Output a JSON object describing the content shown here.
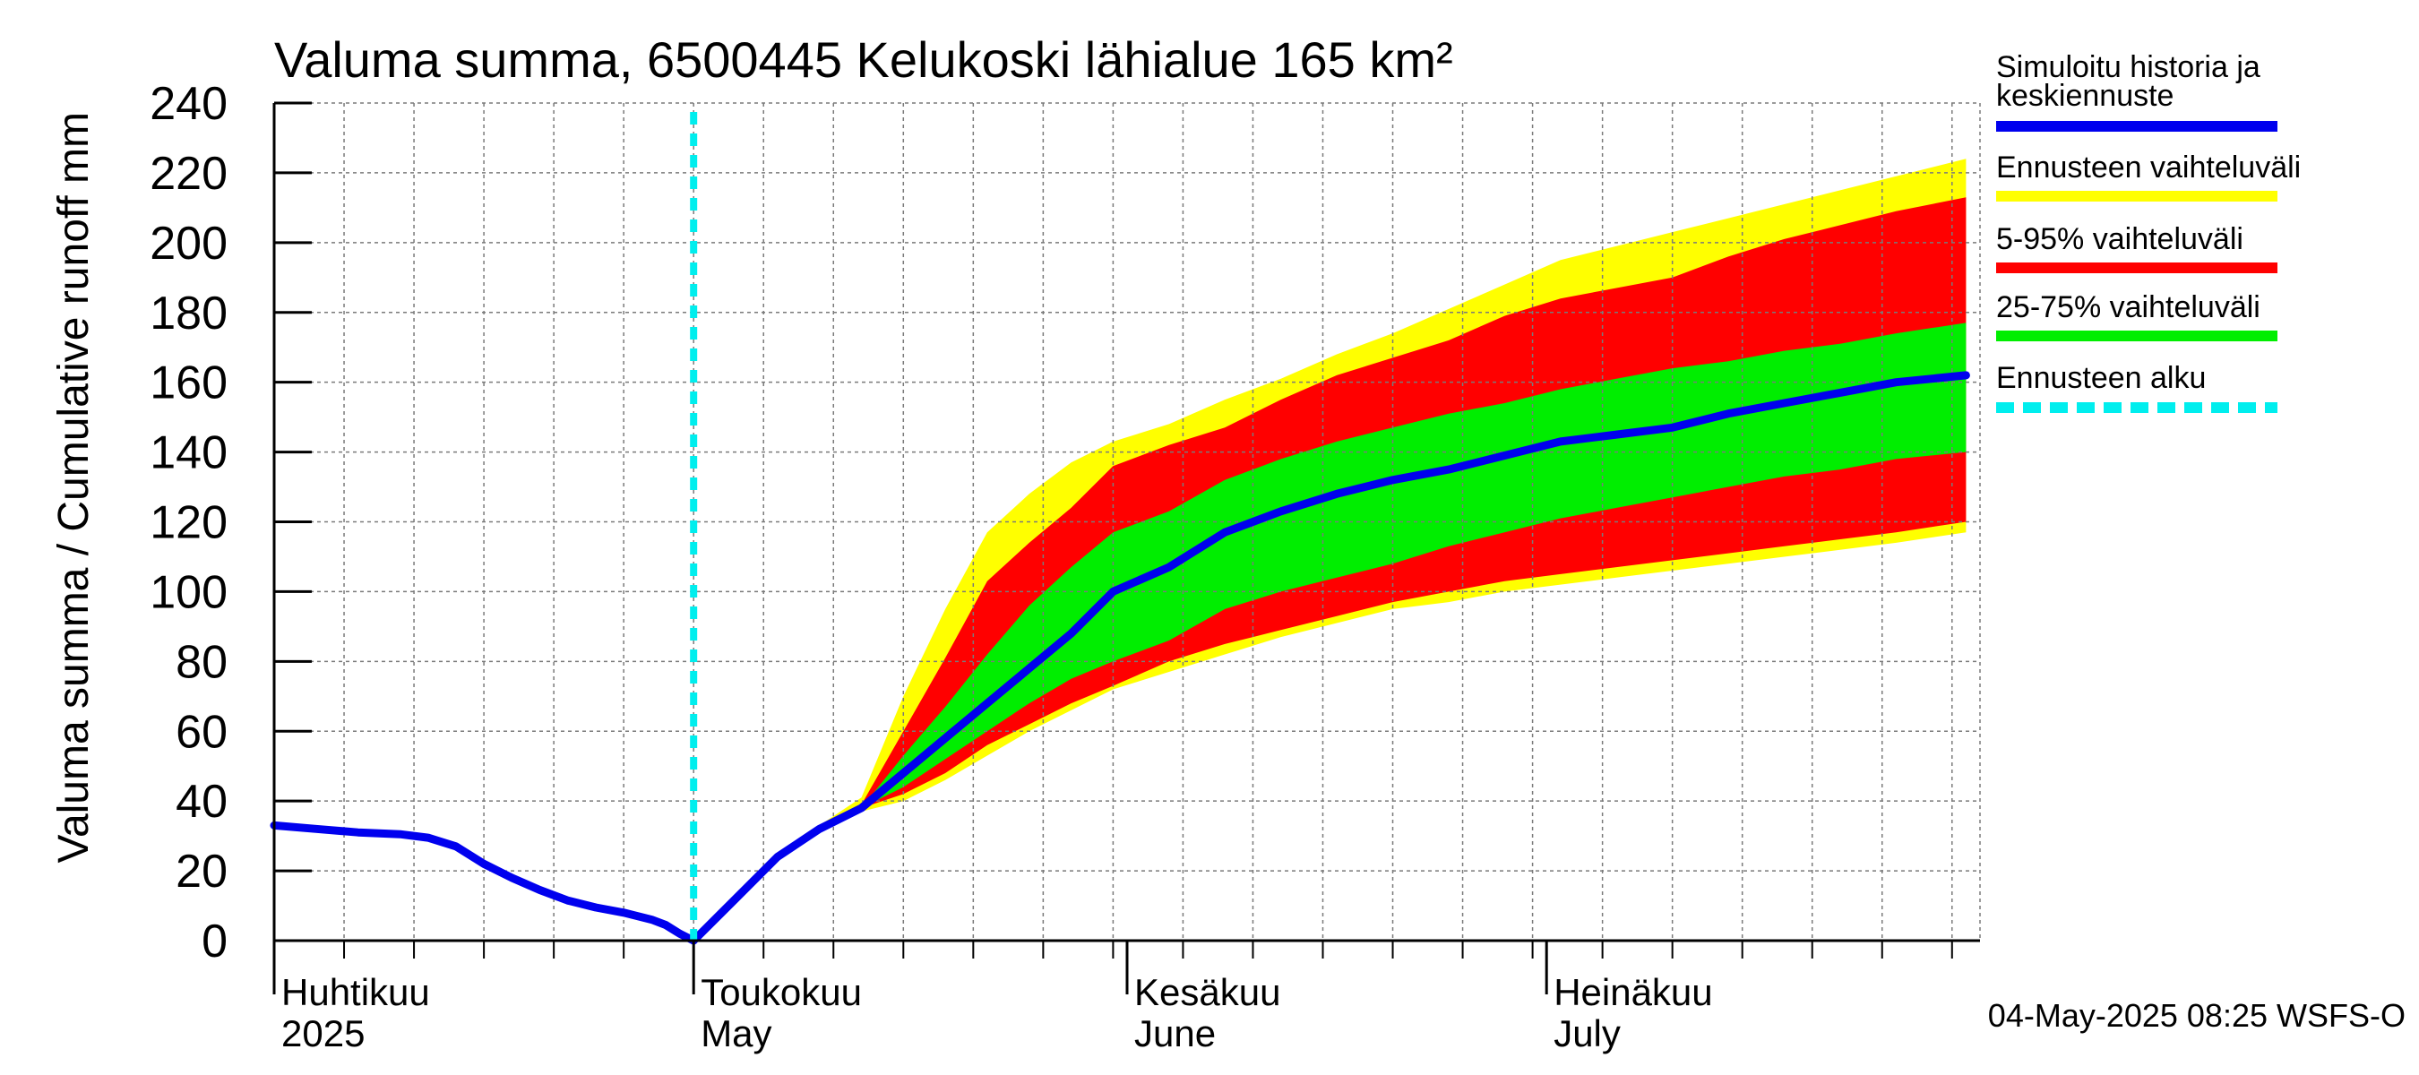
{
  "chart_data": {
    "type": "area",
    "title": "Valuma summa, 6500445 Kelukoski lähialue 165 km²",
    "ylabel": "Valuma summa / Cumulative runoff    mm",
    "ylim": [
      0,
      240
    ],
    "yticks": [
      0,
      20,
      40,
      60,
      80,
      100,
      120,
      140,
      160,
      180,
      200,
      220,
      240
    ],
    "xlim": [
      "2025-04-01",
      "2025-08-01"
    ],
    "grid": true,
    "legend_position": "right",
    "month_labels": [
      {
        "date": "2025-04-01",
        "line1": "Huhtikuu",
        "line2": "2025"
      },
      {
        "date": "2025-05-01",
        "line1": "Toukokuu",
        "line2": "May"
      },
      {
        "date": "2025-06-01",
        "line1": "Kesäkuu",
        "line2": "June"
      },
      {
        "date": "2025-07-01",
        "line1": "Heinäkuu",
        "line2": "July"
      }
    ],
    "forecast_start": "2025-05-01",
    "legend": [
      {
        "label": "Simuloitu historia ja keskiennuste",
        "color": "#0000ee",
        "style": "solid"
      },
      {
        "label": "Ennusteen vaihteluväli",
        "color": "#ffff00",
        "style": "solid"
      },
      {
        "label": "5-95% vaihteluväli",
        "color": "#ff0000",
        "style": "solid"
      },
      {
        "label": "25-75% vaihteluväli",
        "color": "#00ee00",
        "style": "solid"
      },
      {
        "label": "Ennusteen alku",
        "color": "#00eeee",
        "style": "dashed"
      }
    ],
    "history": {
      "name": "Simuloitu historia ja keskiennuste",
      "points": [
        [
          "2025-04-01",
          33
        ],
        [
          "2025-04-04",
          32
        ],
        [
          "2025-04-07",
          31
        ],
        [
          "2025-04-10",
          30.5
        ],
        [
          "2025-04-12",
          29.5
        ],
        [
          "2025-04-14",
          27
        ],
        [
          "2025-04-16",
          22
        ],
        [
          "2025-04-18",
          18
        ],
        [
          "2025-04-20",
          14.5
        ],
        [
          "2025-04-22",
          11.5
        ],
        [
          "2025-04-24",
          9.5
        ],
        [
          "2025-04-26",
          8
        ],
        [
          "2025-04-28",
          6
        ],
        [
          "2025-04-29",
          4.5
        ],
        [
          "2025-04-30",
          2
        ],
        [
          "2025-05-01",
          0
        ]
      ]
    },
    "forecast_dates": [
      "2025-05-01",
      "2025-05-04",
      "2025-05-07",
      "2025-05-10",
      "2025-05-13",
      "2025-05-16",
      "2025-05-19",
      "2025-05-22",
      "2025-05-25",
      "2025-05-28",
      "2025-05-31",
      "2025-06-04",
      "2025-06-08",
      "2025-06-12",
      "2025-06-16",
      "2025-06-20",
      "2025-06-24",
      "2025-06-28",
      "2025-07-02",
      "2025-07-06",
      "2025-07-10",
      "2025-07-14",
      "2025-07-18",
      "2025-07-22",
      "2025-07-26",
      "2025-07-31"
    ],
    "median": [
      0,
      12,
      24,
      32,
      38,
      48,
      58,
      68,
      78,
      88,
      100,
      107,
      117,
      123,
      128,
      132,
      135,
      139,
      143,
      145,
      147,
      151,
      154,
      157,
      160,
      162
    ],
    "p25": [
      0,
      12,
      24,
      32,
      38,
      44,
      52,
      60,
      68,
      75,
      80,
      86,
      95,
      100,
      104,
      108,
      113,
      117,
      121,
      124,
      127,
      130,
      133,
      135,
      138,
      140
    ],
    "p75": [
      0,
      12,
      24,
      32,
      38,
      53,
      67,
      82,
      96,
      107,
      117,
      123,
      132,
      138,
      143,
      147,
      151,
      154,
      158,
      161,
      164,
      166,
      169,
      171,
      174,
      177
    ],
    "p05": [
      0,
      12,
      24,
      32,
      38,
      42,
      48,
      56,
      62,
      68,
      73,
      80,
      85,
      89,
      93,
      97,
      100,
      103,
      105,
      107,
      109,
      111,
      113,
      115,
      117,
      120
    ],
    "p95": [
      0,
      12,
      24,
      32,
      39,
      60,
      81,
      103,
      114,
      124,
      136,
      142,
      147,
      155,
      162,
      167,
      172,
      179,
      184,
      187,
      190,
      196,
      201,
      205,
      209,
      213
    ],
    "min": [
      0,
      12,
      24,
      32,
      37,
      40,
      46,
      53,
      60,
      66,
      72,
      77,
      82,
      87,
      91,
      95,
      97,
      100,
      102,
      104,
      106,
      108,
      110,
      112,
      114,
      117
    ],
    "max": [
      0,
      12,
      24,
      33,
      41,
      70,
      95,
      117,
      128,
      137,
      143,
      148,
      155,
      161,
      168,
      174,
      181,
      188,
      195,
      199,
      203,
      207,
      211,
      215,
      219,
      224
    ]
  },
  "footer": {
    "timestamp": "04-May-2025 08:25 WSFS-O"
  }
}
